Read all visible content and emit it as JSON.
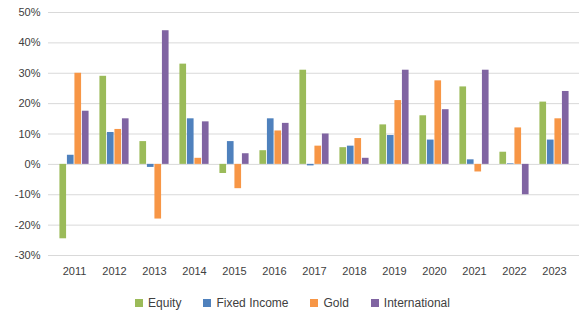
{
  "chart_data": {
    "type": "bar",
    "categories": [
      "2011",
      "2012",
      "2013",
      "2014",
      "2015",
      "2016",
      "2017",
      "2018",
      "2019",
      "2020",
      "2021",
      "2022",
      "2023"
    ],
    "series": [
      {
        "name": "Equity",
        "color": "#9bbb59",
        "values": [
          -24.5,
          29,
          7.5,
          33,
          -3,
          4.5,
          31,
          5.5,
          13,
          16,
          25.5,
          4,
          20.5
        ]
      },
      {
        "name": "Fixed Income",
        "color": "#4f81bd",
        "values": [
          3,
          10.5,
          -1,
          15,
          7.5,
          15,
          -0.5,
          6,
          9.5,
          8,
          1.5,
          0.2,
          8
        ]
      },
      {
        "name": "Gold",
        "color": "#f79646",
        "values": [
          30,
          11.5,
          -18,
          2,
          -8,
          11,
          6,
          8.5,
          21,
          27.5,
          -2.5,
          12,
          15
        ]
      },
      {
        "name": "International",
        "color": "#8064a2",
        "values": [
          17.5,
          15,
          44,
          14,
          3.5,
          13.5,
          10,
          2,
          31,
          18,
          31,
          -10,
          24
        ]
      }
    ],
    "ylim": [
      -30,
      50
    ],
    "yticks": [
      {
        "value": -30,
        "label": "-30%"
      },
      {
        "value": -20,
        "label": "-20%"
      },
      {
        "value": -10,
        "label": "-10%"
      },
      {
        "value": 0,
        "label": "0%"
      },
      {
        "value": 10,
        "label": "10%"
      },
      {
        "value": 20,
        "label": "20%"
      },
      {
        "value": 30,
        "label": "30%"
      },
      {
        "value": 40,
        "label": "40%"
      },
      {
        "value": 50,
        "label": "50%"
      }
    ],
    "grid": true,
    "legend": "bottom"
  }
}
